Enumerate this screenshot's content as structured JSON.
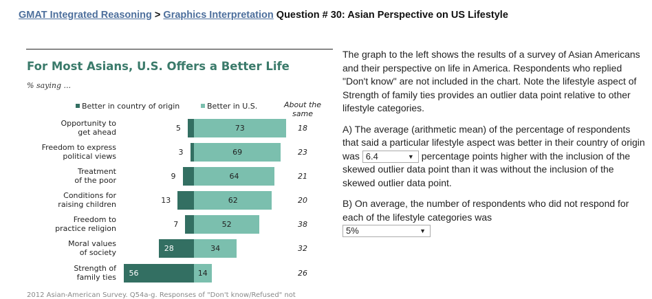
{
  "header": {
    "link1": "GMAT Integrated Reasoning",
    "sep": ">",
    "link2": "Graphics Interpretation",
    "title": "Question # 30: Asian Perspective on US Lifestyle"
  },
  "chart_data": {
    "type": "bar",
    "title": "For Most Asians, U.S. Offers a Better Life",
    "subtitle": "% saying ...",
    "legend": [
      "Better in country of origin",
      "Better in U.S."
    ],
    "extra_column_label": "About the same",
    "categories": [
      "Opportunity to get ahead",
      "Freedom to express political views",
      "Treatment of the poor",
      "Conditions for raising children",
      "Freedom to practice religion",
      "Moral values of society",
      "Strength of family ties"
    ],
    "categories_lines": [
      [
        "Opportunity to",
        "get ahead"
      ],
      [
        "Freedom to express",
        "political views"
      ],
      [
        "Treatment",
        "of the poor"
      ],
      [
        "Conditions for",
        "raising children"
      ],
      [
        "Freedom to",
        "practice religion"
      ],
      [
        "Moral values",
        "of society"
      ],
      [
        "Strength of",
        "family ties"
      ]
    ],
    "series": [
      {
        "name": "Better in country of origin",
        "values": [
          5,
          3,
          9,
          13,
          7,
          28,
          56
        ],
        "color": "#336f62"
      },
      {
        "name": "Better in U.S.",
        "values": [
          73,
          69,
          64,
          62,
          52,
          34,
          14
        ],
        "color": "#7bbfae"
      }
    ],
    "about_same": [
      18,
      23,
      21,
      20,
      38,
      32,
      26
    ],
    "source": "2012 Asian-American Survey. Q54a-g. Responses of \"Don't know/Refused\" not"
  },
  "text": {
    "intro": "The graph to the left shows the results of a survey of Asian Americans and their perspective on life in America. Respondents who replied \"Don't know\" are not included in the chart. Note the lifestyle aspect of Strength of family ties provides an outlier data point relative to other lifestyle categories.",
    "a_before": "A) The average (arithmetic mean) of the percentage of respondents that said a particular lifestyle aspect was better in their country of origin was",
    "a_value": "6.4",
    "a_after": "percentage points higher with the inclusion of the skewed outlier data point than it was without the inclusion of the skewed outlier data point.",
    "b_before": "B) On average, the number of respondents who did not respond for each of the lifestyle categories was",
    "b_value": "5%",
    "arrow": "▼"
  }
}
